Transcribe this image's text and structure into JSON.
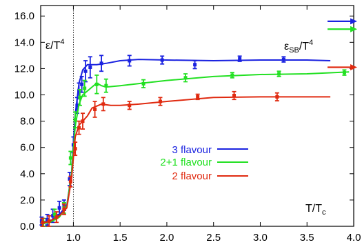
{
  "chart_data": {
    "type": "line",
    "xlim": [
      0.65,
      4.0
    ],
    "ylim": [
      0.0,
      16.8
    ],
    "x_ticks": [
      {
        "value": 1.0,
        "label": "1.0"
      },
      {
        "value": 1.5,
        "label": "1.5"
      },
      {
        "value": 2.0,
        "label": "2.0"
      },
      {
        "value": 2.5,
        "label": "2.5"
      },
      {
        "value": 3.0,
        "label": "3.0"
      },
      {
        "value": 3.5,
        "label": "3.5"
      },
      {
        "value": 4.0,
        "label": "4.0"
      }
    ],
    "y_ticks": [
      {
        "value": 0.0,
        "label": "0.0"
      },
      {
        "value": 2.0,
        "label": "2.0"
      },
      {
        "value": 4.0,
        "label": "4.0"
      },
      {
        "value": 6.0,
        "label": "6.0"
      },
      {
        "value": 8.0,
        "label": "8.0"
      },
      {
        "value": 10.0,
        "label": "10.0"
      },
      {
        "value": 12.0,
        "label": "12.0"
      },
      {
        "value": 14.0,
        "label": "14.0"
      },
      {
        "value": 16.0,
        "label": "16.0"
      }
    ],
    "grid": false,
    "legend_position": "center-left",
    "ylabel": {
      "base": "ε/T",
      "sup": "4"
    },
    "xlabel": {
      "base": "T/T",
      "sub": "c"
    },
    "sb_label": {
      "base": "ε",
      "sub": "SB",
      "mid": "/T",
      "sup": "4"
    },
    "critical_x": 1.0,
    "series": [
      {
        "name": "3 flavour",
        "color": "#1a22e0",
        "curve": [
          [
            0.65,
            0.3
          ],
          [
            0.75,
            0.4
          ],
          [
            0.85,
            0.9
          ],
          [
            0.93,
            1.6
          ],
          [
            0.98,
            4.0
          ],
          [
            1.02,
            8.5
          ],
          [
            1.06,
            10.9
          ],
          [
            1.1,
            11.9
          ],
          [
            1.15,
            12.3
          ],
          [
            1.25,
            12.3
          ],
          [
            1.35,
            12.4
          ],
          [
            1.5,
            12.6
          ],
          [
            1.7,
            12.7
          ],
          [
            2.0,
            12.65
          ],
          [
            2.5,
            12.6
          ],
          [
            3.0,
            12.65
          ],
          [
            3.5,
            12.65
          ],
          [
            3.75,
            12.6
          ]
        ],
        "points": [
          {
            "x": 0.66,
            "y": 0.4,
            "err": 0.3
          },
          {
            "x": 0.72,
            "y": 0.5,
            "err": 0.4
          },
          {
            "x": 0.78,
            "y": 0.8,
            "err": 0.5
          },
          {
            "x": 0.85,
            "y": 1.4,
            "err": 0.5
          },
          {
            "x": 0.9,
            "y": 1.6,
            "err": 0.4
          },
          {
            "x": 0.96,
            "y": 3.6,
            "err": 0.5
          },
          {
            "x": 1.0,
            "y": 6.2,
            "err": 0.6
          },
          {
            "x": 1.04,
            "y": 9.2,
            "err": 0.6
          },
          {
            "x": 1.06,
            "y": 10.3,
            "err": 0.6
          },
          {
            "x": 1.09,
            "y": 10.8,
            "err": 0.6
          },
          {
            "x": 1.13,
            "y": 11.8,
            "err": 0.8
          },
          {
            "x": 1.18,
            "y": 12.1,
            "err": 0.8
          },
          {
            "x": 1.3,
            "y": 12.4,
            "err": 0.6
          },
          {
            "x": 1.6,
            "y": 12.6,
            "err": 0.4
          },
          {
            "x": 1.95,
            "y": 12.65,
            "err": 0.3
          },
          {
            "x": 2.3,
            "y": 12.3,
            "err": 0.3
          },
          {
            "x": 2.78,
            "y": 12.75,
            "err": 0.2
          },
          {
            "x": 3.25,
            "y": 12.7,
            "err": 0.2
          }
        ]
      },
      {
        "name": "2+1 flavour",
        "color": "#22e022",
        "curve": [
          [
            0.65,
            0.2
          ],
          [
            0.75,
            0.3
          ],
          [
            0.85,
            0.7
          ],
          [
            0.93,
            1.5
          ],
          [
            0.98,
            4.0
          ],
          [
            1.02,
            7.6
          ],
          [
            1.06,
            9.3
          ],
          [
            1.1,
            10.0
          ],
          [
            1.15,
            10.3
          ],
          [
            1.2,
            10.6
          ],
          [
            1.25,
            10.9
          ],
          [
            1.3,
            10.7
          ],
          [
            1.35,
            10.6
          ],
          [
            1.5,
            10.7
          ],
          [
            1.75,
            10.9
          ],
          [
            2.0,
            11.1
          ],
          [
            2.5,
            11.4
          ],
          [
            3.0,
            11.55
          ],
          [
            3.5,
            11.6
          ],
          [
            3.95,
            11.75
          ]
        ],
        "points": [
          {
            "x": 0.68,
            "y": 0.3,
            "err": 0.3
          },
          {
            "x": 0.8,
            "y": 0.9,
            "err": 0.4
          },
          {
            "x": 0.9,
            "y": 1.4,
            "err": 0.4
          },
          {
            "x": 0.97,
            "y": 5.2,
            "err": 0.5
          },
          {
            "x": 1.02,
            "y": 8.1,
            "err": 0.6
          },
          {
            "x": 1.07,
            "y": 9.8,
            "err": 0.6
          },
          {
            "x": 1.12,
            "y": 10.5,
            "err": 0.6
          },
          {
            "x": 1.25,
            "y": 10.8,
            "err": 0.7
          },
          {
            "x": 1.35,
            "y": 10.7,
            "err": 0.5
          },
          {
            "x": 1.75,
            "y": 10.85,
            "err": 0.3
          },
          {
            "x": 2.2,
            "y": 11.3,
            "err": 0.3
          },
          {
            "x": 2.7,
            "y": 11.5,
            "err": 0.2
          },
          {
            "x": 3.2,
            "y": 11.6,
            "err": 0.2
          },
          {
            "x": 3.9,
            "y": 11.7,
            "err": 0.2
          }
        ]
      },
      {
        "name": "2 flavour",
        "color": "#e02a10",
        "curve": [
          [
            0.65,
            0.2
          ],
          [
            0.75,
            0.4
          ],
          [
            0.85,
            0.8
          ],
          [
            0.93,
            1.4
          ],
          [
            0.98,
            3.6
          ],
          [
            1.02,
            6.8
          ],
          [
            1.06,
            7.7
          ],
          [
            1.1,
            8.0
          ],
          [
            1.15,
            8.4
          ],
          [
            1.2,
            9.0
          ],
          [
            1.3,
            9.3
          ],
          [
            1.4,
            9.2
          ],
          [
            1.5,
            9.2
          ],
          [
            1.7,
            9.3
          ],
          [
            2.0,
            9.5
          ],
          [
            2.5,
            9.8
          ],
          [
            3.0,
            9.85
          ],
          [
            3.5,
            9.85
          ],
          [
            3.75,
            9.85
          ]
        ],
        "points": [
          {
            "x": 0.67,
            "y": 0.3,
            "err": 0.3
          },
          {
            "x": 0.74,
            "y": 0.4,
            "err": 0.4
          },
          {
            "x": 0.82,
            "y": 0.7,
            "err": 0.4
          },
          {
            "x": 0.9,
            "y": 1.3,
            "err": 0.4
          },
          {
            "x": 0.97,
            "y": 3.4,
            "err": 0.4
          },
          {
            "x": 1.02,
            "y": 5.9,
            "err": 0.5
          },
          {
            "x": 1.06,
            "y": 7.5,
            "err": 0.5
          },
          {
            "x": 1.1,
            "y": 8.0,
            "err": 0.6
          },
          {
            "x": 1.23,
            "y": 8.9,
            "err": 0.6
          },
          {
            "x": 1.32,
            "y": 9.3,
            "err": 0.5
          },
          {
            "x": 1.6,
            "y": 9.2,
            "err": 0.3
          },
          {
            "x": 1.93,
            "y": 9.5,
            "err": 0.3
          },
          {
            "x": 2.33,
            "y": 9.85,
            "err": 0.2
          },
          {
            "x": 2.72,
            "y": 9.95,
            "err": 0.3
          },
          {
            "x": 3.18,
            "y": 9.85,
            "err": 0.3
          }
        ]
      }
    ],
    "sb_arrows": [
      {
        "series": "3 flavour",
        "y": 15.6
      },
      {
        "series": "2+1 flavour",
        "y": 15.0
      },
      {
        "series": "2 flavour",
        "y": 12.1
      }
    ]
  }
}
